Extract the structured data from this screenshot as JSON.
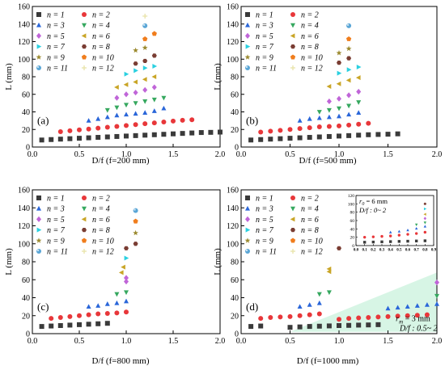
{
  "figure": {
    "legend_labels": [
      "n = 1",
      "n = 2",
      "n = 3",
      "n = 4",
      "n = 5",
      "n = 6",
      "n = 7",
      "n = 8",
      "n = 9",
      "n = 10",
      "n = 11",
      "n = 12"
    ],
    "marker_colors": [
      "#3a3a3a",
      "#e8373a",
      "#2a66d9",
      "#36a85f",
      "#c065d8",
      "#c9a526",
      "#2ad0e0",
      "#7a3d33",
      "#9b8a2f",
      "#f07d1d",
      "#5aa6d6",
      "#e8e3a8"
    ],
    "marker_shapes": [
      "square",
      "circle",
      "triangle-up",
      "triangle-down",
      "diamond",
      "triangle-left",
      "triangle-right",
      "hexagon",
      "star",
      "pentagon",
      "sphere",
      "cross"
    ]
  },
  "chart_data": [
    {
      "type": "scatter",
      "panel_label": "(a)",
      "xlabel": "D/f  (f=200 mm)",
      "ylabel": "L (mm)",
      "xlim": [
        0,
        2.0
      ],
      "ylim": [
        0,
        160
      ],
      "xticks": [
        "0.0",
        "0.5",
        "1.0",
        "1.5",
        "2.0"
      ],
      "yticks": [
        "0",
        "20",
        "40",
        "60",
        "80",
        "100",
        "120",
        "140",
        "160"
      ],
      "series": [
        {
          "name": "n = 1",
          "x": [
            0.1,
            0.2,
            0.3,
            0.4,
            0.5,
            0.6,
            0.7,
            0.8,
            0.9,
            1.0,
            1.1,
            1.2,
            1.3,
            1.4,
            1.5,
            1.6,
            1.7,
            1.8,
            1.9,
            2.0
          ],
          "y": [
            8,
            8.5,
            9,
            9.5,
            10,
            10.5,
            11,
            11.5,
            12,
            12.5,
            13,
            13.5,
            14,
            14.5,
            15,
            15.5,
            16,
            16.5,
            16.7,
            17
          ]
        },
        {
          "name": "n = 2",
          "x": [
            0.3,
            0.4,
            0.5,
            0.6,
            0.7,
            0.8,
            0.9,
            1.0,
            1.1,
            1.2,
            1.3,
            1.4,
            1.5,
            1.6,
            1.7
          ],
          "y": [
            17.5,
            18.5,
            19.5,
            20.5,
            21.5,
            22.5,
            23.5,
            24.5,
            25.5,
            26.5,
            27.5,
            28.5,
            29.5,
            30.5,
            31
          ]
        },
        {
          "name": "n = 3",
          "x": [
            0.6,
            0.7,
            0.8,
            0.9,
            1.0,
            1.1,
            1.2,
            1.3,
            1.4
          ],
          "y": [
            30,
            32,
            34,
            36,
            37,
            38,
            39,
            41,
            44
          ]
        },
        {
          "name": "n = 4",
          "x": [
            0.8,
            0.9,
            1.0,
            1.1,
            1.2,
            1.3,
            1.4
          ],
          "y": [
            42,
            45,
            48,
            50,
            52,
            54,
            56
          ]
        },
        {
          "name": "n = 5",
          "x": [
            0.9,
            1.0,
            1.1,
            1.2,
            1.3
          ],
          "y": [
            56,
            60,
            62,
            65,
            68
          ]
        },
        {
          "name": "n = 6",
          "x": [
            0.9,
            1.0,
            1.1,
            1.2,
            1.3
          ],
          "y": [
            68,
            71,
            74,
            77,
            80
          ]
        },
        {
          "name": "n = 7",
          "x": [
            1.0,
            1.1,
            1.2,
            1.3
          ],
          "y": [
            83,
            87,
            90,
            92
          ]
        },
        {
          "name": "n = 8",
          "x": [
            1.1,
            1.2,
            1.3
          ],
          "y": [
            95,
            98,
            104
          ]
        },
        {
          "name": "n = 9",
          "x": [
            1.1,
            1.2
          ],
          "y": [
            110,
            113
          ]
        },
        {
          "name": "n = 10",
          "x": [
            1.2,
            1.3
          ],
          "y": [
            123,
            129
          ]
        },
        {
          "name": "n = 11",
          "x": [
            1.2
          ],
          "y": [
            138
          ]
        },
        {
          "name": "n = 12",
          "x": [
            1.2
          ],
          "y": [
            149
          ]
        }
      ]
    },
    {
      "type": "scatter",
      "panel_label": "(b)",
      "xlabel": "D/f  (f=500 mm)",
      "ylabel": "L (mm)",
      "xlim": [
        0,
        2.0
      ],
      "ylim": [
        0,
        160
      ],
      "xticks": [
        "0.0",
        "0.5",
        "1.0",
        "1.5",
        "2.0"
      ],
      "yticks": [
        "0",
        "20",
        "40",
        "60",
        "80",
        "100",
        "120",
        "140",
        "160"
      ],
      "series": [
        {
          "name": "n = 1",
          "x": [
            0.1,
            0.2,
            0.3,
            0.4,
            0.5,
            0.6,
            0.7,
            0.8,
            0.9,
            1.0,
            1.1,
            1.2,
            1.3,
            1.4,
            1.5,
            1.6
          ],
          "y": [
            8,
            8.5,
            9,
            9.5,
            10,
            10.5,
            11,
            11.5,
            12,
            12.5,
            13,
            13.5,
            14,
            14.3,
            14.6,
            15
          ]
        },
        {
          "name": "n = 2",
          "x": [
            0.2,
            0.3,
            0.4,
            0.5,
            0.6,
            0.7,
            0.8,
            0.9,
            1.0,
            1.1,
            1.2,
            1.3
          ],
          "y": [
            17,
            18,
            19,
            20,
            21,
            22,
            23,
            23.5,
            24,
            25,
            26,
            27
          ]
        },
        {
          "name": "n = 3",
          "x": [
            0.6,
            0.7,
            0.8,
            0.9,
            1.0,
            1.1,
            1.2
          ],
          "y": [
            30,
            32,
            33,
            34,
            35,
            37,
            39
          ]
        },
        {
          "name": "n = 4",
          "x": [
            0.8,
            0.9,
            1.0,
            1.1,
            1.2
          ],
          "y": [
            40,
            42,
            44,
            47,
            51
          ]
        },
        {
          "name": "n = 5",
          "x": [
            0.9,
            1.0,
            1.1,
            1.2
          ],
          "y": [
            52,
            55,
            59,
            63
          ]
        },
        {
          "name": "n = 6",
          "x": [
            0.9,
            1.0,
            1.1,
            1.2
          ],
          "y": [
            69,
            72,
            76,
            79
          ]
        },
        {
          "name": "n = 7",
          "x": [
            1.0,
            1.1,
            1.2
          ],
          "y": [
            84,
            88,
            91
          ]
        },
        {
          "name": "n = 8",
          "x": [
            1.0,
            1.1
          ],
          "y": [
            96,
            101
          ]
        },
        {
          "name": "n = 9",
          "x": [
            1.0,
            1.1
          ],
          "y": [
            107,
            112
          ]
        },
        {
          "name": "n = 10",
          "x": [
            1.1
          ],
          "y": [
            123
          ]
        },
        {
          "name": "n = 11",
          "x": [
            1.1
          ],
          "y": [
            138
          ]
        }
      ]
    },
    {
      "type": "scatter",
      "panel_label": "(c)",
      "xlabel": "D/f  (f=800 mm)",
      "ylabel": "L (mm)",
      "xlim": [
        0,
        2.0
      ],
      "ylim": [
        0,
        160
      ],
      "xticks": [
        "0.0",
        "0.5",
        "1.0",
        "1.5",
        "2.0"
      ],
      "yticks": [
        "0",
        "20",
        "40",
        "60",
        "80",
        "100",
        "120",
        "140",
        "160"
      ],
      "series": [
        {
          "name": "n = 1",
          "x": [
            0.1,
            0.2,
            0.3,
            0.4,
            0.5,
            0.6,
            0.7,
            0.8
          ],
          "y": [
            8,
            8.5,
            9,
            9.5,
            10,
            10.5,
            11,
            11.5
          ]
        },
        {
          "name": "n = 2",
          "x": [
            0.2,
            0.3,
            0.4,
            0.5,
            0.6,
            0.7,
            0.8,
            0.9,
            1.0
          ],
          "y": [
            17,
            18,
            19,
            20,
            21,
            22,
            22.5,
            23,
            24
          ]
        },
        {
          "name": "n = 3",
          "x": [
            0.6,
            0.7,
            0.8,
            0.9,
            1.0
          ],
          "y": [
            30,
            31,
            33,
            34,
            36
          ]
        },
        {
          "name": "n = 4",
          "x": [
            0.9,
            1.0
          ],
          "y": [
            44,
            46
          ]
        },
        {
          "name": "n = 5",
          "x": [
            1.0,
            1.0
          ],
          "y": [
            58,
            62
          ]
        },
        {
          "name": "n = 6",
          "x": [
            0.95,
            0.97
          ],
          "y": [
            68,
            74
          ]
        },
        {
          "name": "n = 7",
          "x": [
            1.0
          ],
          "y": [
            84
          ]
        },
        {
          "name": "n = 8",
          "x": [
            1.0,
            1.1
          ],
          "y": [
            95,
            100
          ]
        },
        {
          "name": "n = 9",
          "x": [
            1.1
          ],
          "y": [
            112
          ]
        },
        {
          "name": "n = 10",
          "x": [
            1.1
          ],
          "y": [
            125
          ]
        },
        {
          "name": "n = 11",
          "x": [
            1.1
          ],
          "y": [
            137
          ]
        }
      ]
    },
    {
      "type": "scatter",
      "panel_label": "(d)",
      "xlabel": "D/f  (f=1000 mm)",
      "ylabel": "L (mm)",
      "xlim": [
        0,
        2.0
      ],
      "ylim": [
        0,
        160
      ],
      "xticks": [
        "0.0",
        "0.5",
        "1.0",
        "1.5",
        "2.0"
      ],
      "yticks": [
        "0",
        "20",
        "40",
        "60",
        "80",
        "100",
        "120",
        "140",
        "160"
      ],
      "annotations": {
        "rm_label": "r",
        "rm_sub": "m",
        "rm_value": " = 3 mm",
        "rm_range": "D/f : 0.5~ 2"
      },
      "series": [
        {
          "name": "n = 1",
          "x": [
            0.1,
            0.2,
            0.5,
            0.6,
            0.7,
            0.8,
            0.9,
            1.0,
            1.1,
            1.2,
            1.3,
            1.4
          ],
          "y": [
            8,
            8.5,
            7,
            7.5,
            8,
            8.3,
            8.6,
            9,
            9.2,
            9.5,
            9.7,
            10
          ]
        },
        {
          "name": "n = 2",
          "x": [
            0.2,
            0.3,
            0.4,
            0.5,
            0.6,
            0.7,
            0.8,
            1.0,
            1.1,
            1.2,
            1.3,
            1.4,
            1.5,
            1.6,
            1.7,
            1.8,
            1.9
          ],
          "y": [
            17,
            18,
            18.5,
            19,
            20,
            21,
            22,
            16,
            17,
            17.5,
            18,
            18.5,
            19,
            19.5,
            20,
            20.5,
            21
          ]
        },
        {
          "name": "n = 3",
          "x": [
            0.6,
            0.7,
            0.8,
            1.5,
            1.6,
            1.7,
            1.8,
            1.9,
            2.0
          ],
          "y": [
            30,
            32,
            34,
            28,
            29,
            30,
            31,
            32,
            33
          ]
        },
        {
          "name": "n = 4",
          "x": [
            0.8,
            0.9,
            2.0
          ],
          "y": [
            44,
            46,
            42
          ]
        },
        {
          "name": "n = 5",
          "x": [
            2.0
          ],
          "y": [
            57
          ]
        },
        {
          "name": "n = 6",
          "x": [
            0.9,
            0.9
          ],
          "y": [
            69,
            72
          ]
        },
        {
          "name": "n = 8",
          "x": [
            1.0
          ],
          "y": [
            95
          ]
        }
      ],
      "inset": {
        "label_r0": "r",
        "label_r0_sub": "0",
        "label_r0_value": " = 6 mm",
        "label_range": "D/f : 0~ 2",
        "xlim": [
          0,
          0.9
        ],
        "ylim": [
          0,
          120
        ],
        "xticks": [
          "0.0",
          "0.1",
          "0.2",
          "0.3",
          "0.4",
          "0.5",
          "0.6",
          "0.7",
          "0.8",
          "0.9"
        ],
        "yticks": [
          "0",
          "20",
          "40",
          "60",
          "80",
          "100",
          "120"
        ],
        "series": [
          {
            "name": "n = 1",
            "x": [
              0.1,
              0.2,
              0.3,
              0.4,
              0.5,
              0.6,
              0.7,
              0.8
            ],
            "y": [
              8,
              8.5,
              9,
              9.5,
              10,
              10.5,
              11,
              11.5
            ]
          },
          {
            "name": "n = 2",
            "x": [
              0.1,
              0.2,
              0.3,
              0.4,
              0.5,
              0.6,
              0.7,
              0.8
            ],
            "y": [
              20,
              21,
              22,
              23,
              25,
              27,
              29,
              32
            ]
          },
          {
            "name": "n = 3",
            "x": [
              0.4,
              0.5,
              0.6,
              0.7,
              0.8
            ],
            "y": [
              32,
              34,
              37,
              41,
              46
            ]
          },
          {
            "name": "n = 4",
            "x": [
              0.7,
              0.8
            ],
            "y": [
              50,
              55
            ]
          },
          {
            "name": "n = 5",
            "x": [
              0.8
            ],
            "y": [
              65
            ]
          },
          {
            "name": "n = 6",
            "x": [
              0.8
            ],
            "y": [
              75
            ]
          },
          {
            "name": "n = 7",
            "x": [
              0.8
            ],
            "y": [
              88
            ]
          },
          {
            "name": "n = 8",
            "x": [
              0.8
            ],
            "y": [
              100
            ]
          }
        ]
      }
    }
  ]
}
